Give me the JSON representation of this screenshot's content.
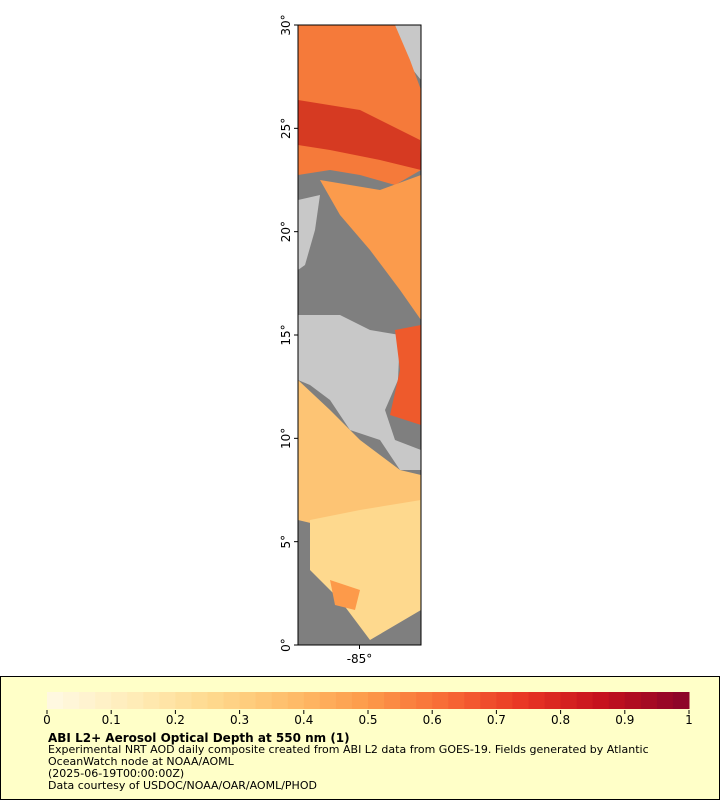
{
  "map": {
    "lat_lim": [
      0,
      30
    ],
    "lat_ticks": [
      {
        "value": 0,
        "label": "0°"
      },
      {
        "value": 5,
        "label": "5°"
      },
      {
        "value": 10,
        "label": "10°"
      },
      {
        "value": 15,
        "label": "15°"
      },
      {
        "value": 20,
        "label": "20°"
      },
      {
        "value": 25,
        "label": "25°"
      },
      {
        "value": 30,
        "label": "30°"
      }
    ],
    "lon_lim": [
      -88,
      -82
    ],
    "lon_ticks": [
      {
        "value": -85,
        "label": "-85°"
      }
    ]
  },
  "colorbar": {
    "lim": [
      0,
      1
    ],
    "ticks": [
      0,
      0.1,
      0.2,
      0.3,
      0.4,
      0.5,
      0.6,
      0.7,
      0.8,
      0.9,
      1
    ],
    "colors": [
      "#fff8e0",
      "#ffecb8",
      "#fed98e",
      "#febe6a",
      "#fd9a4a",
      "#f86a35",
      "#e83524",
      "#c5111d",
      "#8e0528"
    ]
  },
  "caption": {
    "title": "ABI L2+ Aerosol Optical Depth at 550 nm (1)",
    "lines": [
      "Experimental NRT AOD daily composite created from ABI L2 data from GOES-19. Fields generated by Atlantic",
      "OceanWatch node at NOAA/AOML",
      "(2025-06-19T00:00:00Z)",
      "Data courtesy of USDOC/NOAA/OAR/AOML/PHOD"
    ]
  }
}
